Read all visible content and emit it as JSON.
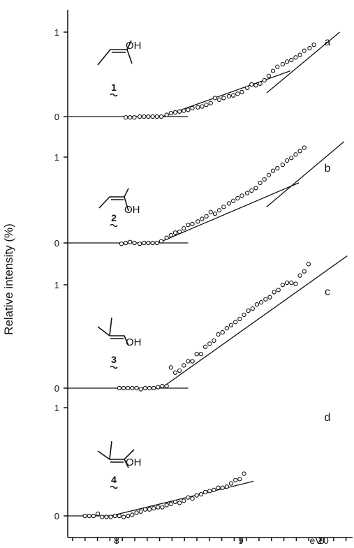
{
  "chart_data": {
    "type": "scatter",
    "ylabel": "Relative intensity (%)",
    "x_unit_label": "eV",
    "x_ticks": [
      "8",
      "9",
      "10"
    ],
    "xlim": [
      7.5,
      10.15
    ],
    "panels": [
      {
        "letter": "a",
        "compound_number": "1",
        "molecule_label": "OH",
        "y_ticks": [
          "0",
          "1"
        ],
        "ylim": [
          0,
          1.18
        ],
        "baseline": {
          "x": [
            7.5,
            8.62
          ],
          "y": [
            0,
            0
          ]
        },
        "fits": [
          {
            "x": [
              8.38,
              9.57
            ],
            "y": [
              0,
              0.54
            ]
          },
          {
            "x": [
              9.35,
              10.03
            ],
            "y": [
              0.28,
              1.0
            ]
          }
        ],
        "points": [
          [
            8.04,
            -0.01
          ],
          [
            8.08,
            -0.01
          ],
          [
            8.12,
            -0.01
          ],
          [
            8.17,
            0.0
          ],
          [
            8.21,
            0.0
          ],
          [
            8.25,
            0.0
          ],
          [
            8.29,
            0.0
          ],
          [
            8.33,
            0.0
          ],
          [
            8.37,
            0.0
          ],
          [
            8.42,
            0.02
          ],
          [
            8.46,
            0.04
          ],
          [
            8.5,
            0.05
          ],
          [
            8.54,
            0.06
          ],
          [
            8.58,
            0.07
          ],
          [
            8.62,
            0.08
          ],
          [
            8.66,
            0.1
          ],
          [
            8.71,
            0.11
          ],
          [
            8.75,
            0.12
          ],
          [
            8.79,
            0.14
          ],
          [
            8.83,
            0.16
          ],
          [
            8.87,
            0.22
          ],
          [
            8.91,
            0.2
          ],
          [
            8.95,
            0.22
          ],
          [
            9.0,
            0.24
          ],
          [
            9.04,
            0.25
          ],
          [
            9.08,
            0.27
          ],
          [
            9.12,
            0.29
          ],
          [
            9.17,
            0.34
          ],
          [
            9.21,
            0.38
          ],
          [
            9.25,
            0.37
          ],
          [
            9.29,
            0.39
          ],
          [
            9.33,
            0.43
          ],
          [
            9.37,
            0.48
          ],
          [
            9.41,
            0.54
          ],
          [
            9.45,
            0.59
          ],
          [
            9.5,
            0.62
          ],
          [
            9.54,
            0.65
          ],
          [
            9.58,
            0.67
          ],
          [
            9.62,
            0.7
          ],
          [
            9.66,
            0.73
          ],
          [
            9.7,
            0.78
          ],
          [
            9.75,
            0.81
          ],
          [
            9.79,
            0.85
          ]
        ]
      },
      {
        "letter": "b",
        "compound_number": "2",
        "molecule_label": "OH",
        "y_ticks": [
          "0",
          "1"
        ],
        "ylim": [
          0,
          1.18
        ],
        "baseline": {
          "x": [
            7.5,
            8.62
          ],
          "y": [
            0,
            0
          ]
        },
        "fits": [
          {
            "x": [
              8.34,
              9.65
            ],
            "y": [
              0,
              0.7
            ]
          },
          {
            "x": [
              9.35,
              10.07
            ],
            "y": [
              0.42,
              1.18
            ]
          }
        ],
        "points": [
          [
            8.0,
            -0.01
          ],
          [
            8.04,
            0.0
          ],
          [
            8.08,
            0.01
          ],
          [
            8.12,
            0.0
          ],
          [
            8.17,
            -0.01
          ],
          [
            8.21,
            0.0
          ],
          [
            8.25,
            0.0
          ],
          [
            8.29,
            0.0
          ],
          [
            8.33,
            0.0
          ],
          [
            8.37,
            0.02
          ],
          [
            8.42,
            0.06
          ],
          [
            8.46,
            0.09
          ],
          [
            8.5,
            0.12
          ],
          [
            8.54,
            0.13
          ],
          [
            8.58,
            0.17
          ],
          [
            8.62,
            0.21
          ],
          [
            8.66,
            0.22
          ],
          [
            8.71,
            0.25
          ],
          [
            8.75,
            0.28
          ],
          [
            8.79,
            0.31
          ],
          [
            8.83,
            0.36
          ],
          [
            8.87,
            0.34
          ],
          [
            8.91,
            0.38
          ],
          [
            8.95,
            0.42
          ],
          [
            9.0,
            0.46
          ],
          [
            9.04,
            0.49
          ],
          [
            9.08,
            0.52
          ],
          [
            9.12,
            0.55
          ],
          [
            9.17,
            0.58
          ],
          [
            9.21,
            0.61
          ],
          [
            9.25,
            0.64
          ],
          [
            9.29,
            0.7
          ],
          [
            9.33,
            0.74
          ],
          [
            9.37,
            0.79
          ],
          [
            9.41,
            0.84
          ],
          [
            9.45,
            0.87
          ],
          [
            9.5,
            0.91
          ],
          [
            9.54,
            0.96
          ],
          [
            9.58,
            0.99
          ],
          [
            9.62,
            1.03
          ],
          [
            9.66,
            1.07
          ],
          [
            9.7,
            1.11
          ]
        ]
      },
      {
        "letter": "c",
        "compound_number": "3",
        "molecule_label": "OH",
        "y_ticks": [
          "0",
          "1"
        ],
        "ylim": [
          0,
          1.18
        ],
        "baseline": {
          "x": [
            7.5,
            8.62
          ],
          "y": [
            0,
            0
          ]
        },
        "fits": [
          {
            "x": [
              8.37,
              10.1
            ],
            "y": [
              0,
              1.28
            ]
          }
        ],
        "points": [
          [
            7.98,
            0.0
          ],
          [
            8.02,
            0.0
          ],
          [
            8.06,
            0.0
          ],
          [
            8.1,
            0.0
          ],
          [
            8.14,
            0.0
          ],
          [
            8.18,
            -0.01
          ],
          [
            8.22,
            0.0
          ],
          [
            8.26,
            0.0
          ],
          [
            8.3,
            0.0
          ],
          [
            8.34,
            0.01
          ],
          [
            8.38,
            0.02
          ],
          [
            8.42,
            0.02
          ],
          [
            8.46,
            0.2
          ],
          [
            8.5,
            0.15
          ],
          [
            8.54,
            0.17
          ],
          [
            8.58,
            0.22
          ],
          [
            8.62,
            0.26
          ],
          [
            8.66,
            0.26
          ],
          [
            8.7,
            0.33
          ],
          [
            8.74,
            0.33
          ],
          [
            8.78,
            0.4
          ],
          [
            8.82,
            0.43
          ],
          [
            8.86,
            0.46
          ],
          [
            8.9,
            0.52
          ],
          [
            8.94,
            0.54
          ],
          [
            8.98,
            0.58
          ],
          [
            9.02,
            0.61
          ],
          [
            9.06,
            0.64
          ],
          [
            9.1,
            0.67
          ],
          [
            9.14,
            0.71
          ],
          [
            9.18,
            0.75
          ],
          [
            9.22,
            0.77
          ],
          [
            9.26,
            0.81
          ],
          [
            9.3,
            0.83
          ],
          [
            9.34,
            0.86
          ],
          [
            9.38,
            0.88
          ],
          [
            9.42,
            0.93
          ],
          [
            9.46,
            0.95
          ],
          [
            9.5,
            1.0
          ],
          [
            9.54,
            1.02
          ],
          [
            9.58,
            1.02
          ],
          [
            9.62,
            1.01
          ],
          [
            9.66,
            1.09
          ],
          [
            9.7,
            1.13
          ],
          [
            9.74,
            1.2
          ]
        ]
      },
      {
        "letter": "d",
        "compound_number": "4",
        "molecule_label": "OH",
        "y_ticks": [
          "0",
          "1"
        ],
        "ylim": [
          0,
          1.18
        ],
        "baseline": {
          "x": [
            7.5,
            8.0
          ],
          "y": [
            0,
            0
          ]
        },
        "fits": [
          {
            "x": [
              7.9,
              9.23
            ],
            "y": [
              0,
              0.32
            ]
          }
        ],
        "points": [
          [
            7.66,
            0.0
          ],
          [
            7.7,
            0.0
          ],
          [
            7.74,
            0.0
          ],
          [
            7.78,
            0.02
          ],
          [
            7.82,
            -0.01
          ],
          [
            7.86,
            -0.01
          ],
          [
            7.9,
            -0.01
          ],
          [
            7.94,
            0.0
          ],
          [
            7.98,
            0.0
          ],
          [
            8.02,
            -0.01
          ],
          [
            8.06,
            0.0
          ],
          [
            8.1,
            0.01
          ],
          [
            8.14,
            0.03
          ],
          [
            8.18,
            0.04
          ],
          [
            8.22,
            0.06
          ],
          [
            8.26,
            0.06
          ],
          [
            8.3,
            0.07
          ],
          [
            8.34,
            0.08
          ],
          [
            8.38,
            0.08
          ],
          [
            8.42,
            0.1
          ],
          [
            8.46,
            0.11
          ],
          [
            8.5,
            0.13
          ],
          [
            8.54,
            0.12
          ],
          [
            8.58,
            0.14
          ],
          [
            8.62,
            0.17
          ],
          [
            8.66,
            0.16
          ],
          [
            8.7,
            0.19
          ],
          [
            8.74,
            0.2
          ],
          [
            8.78,
            0.22
          ],
          [
            8.82,
            0.23
          ],
          [
            8.86,
            0.24
          ],
          [
            8.9,
            0.26
          ],
          [
            8.94,
            0.26
          ],
          [
            8.98,
            0.27
          ],
          [
            9.02,
            0.3
          ],
          [
            9.06,
            0.33
          ],
          [
            9.1,
            0.34
          ],
          [
            9.14,
            0.39
          ]
        ]
      }
    ]
  }
}
